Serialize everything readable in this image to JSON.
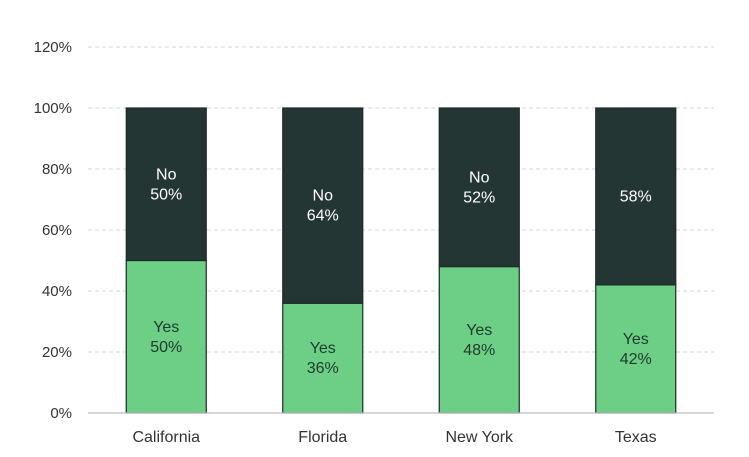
{
  "chart_data": {
    "type": "bar",
    "stacked": true,
    "normalized": true,
    "categories": [
      "California",
      "Florida",
      "New York",
      "Texas"
    ],
    "series": [
      {
        "name": "Yes",
        "values": [
          50,
          36,
          48,
          42
        ],
        "color": "#6ccf85",
        "label_color": "#1e3a2c",
        "labels": [
          [
            "Yes",
            "50%"
          ],
          [
            "Yes",
            "36%"
          ],
          [
            "Yes",
            "48%"
          ],
          [
            "Yes",
            "42%"
          ]
        ]
      },
      {
        "name": "No",
        "values": [
          50,
          64,
          52,
          58
        ],
        "color": "#233634",
        "label_color": "#ffffff",
        "labels": [
          [
            "No",
            "50%"
          ],
          [
            "No",
            "64%"
          ],
          [
            "No",
            "52%"
          ],
          [
            "58%"
          ]
        ]
      }
    ],
    "y_ticks": [
      "0%",
      "20%",
      "40%",
      "60%",
      "80%",
      "100%",
      "120%"
    ],
    "ylim": [
      0,
      120
    ],
    "grid": true,
    "legend": "none",
    "title": "",
    "xlabel": "",
    "ylabel": ""
  }
}
